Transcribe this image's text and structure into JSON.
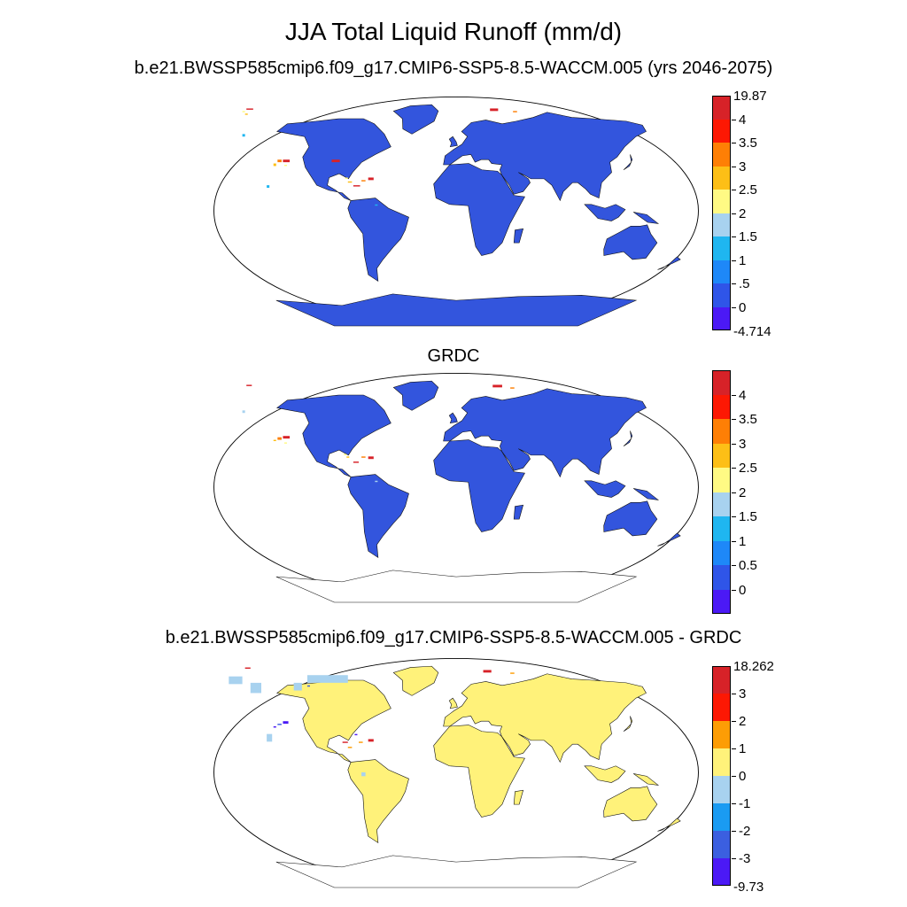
{
  "title": "JJA Total Liquid Runoff (mm/d)",
  "panels": [
    {
      "id": "p1",
      "title": "b.e21.BWSSP585cmip6.f09_g17.CMIP6-SSP5-8.5-WACCM.005 (yrs 2046-2075)",
      "legend": {
        "colors": [
          "#4b19f5",
          "#2f55e8",
          "#1e88f8",
          "#1fb6f0",
          "#a8d2ef",
          "#fffa84",
          "#fdbf16",
          "#fe7f05",
          "#fd1803",
          "#d72228"
        ],
        "labels": [
          "-4.714",
          "0",
          ".5",
          "1",
          "1.5",
          "2",
          "2.5",
          "3",
          "3.5",
          "4",
          "19.87"
        ],
        "end_labels": true
      },
      "land": "#3355dd",
      "patches": [
        {
          "color": "#d72228",
          "shapes": [
            [
              205,
              10,
              6,
              2
            ],
            [
              52,
              50,
              5,
              2
            ],
            [
              88,
              50,
              6,
              2
            ],
            [
              25,
              10,
              5,
              1
            ],
            [
              115,
              64,
              4,
              2
            ],
            [
              104,
              70,
              5,
              1
            ]
          ]
        },
        {
          "color": "#fe7f05",
          "shapes": [
            [
              48,
              50,
              3,
              2
            ],
            [
              110,
              66,
              3,
              1
            ],
            [
              222,
              12,
              3,
              1
            ]
          ]
        },
        {
          "color": "#fdbf16",
          "shapes": [
            [
              45,
              53,
              2,
              2
            ],
            [
              100,
              67,
              3,
              1
            ],
            [
              24,
              14,
              2,
              1
            ]
          ]
        },
        {
          "color": "#fffa84",
          "shapes": [
            [
              53,
              54,
              2,
              1
            ],
            [
              98,
              64,
              2,
              1
            ],
            [
              22,
              12,
              2,
              1
            ]
          ]
        },
        {
          "color": "#1fb6f0",
          "shapes": [
            [
              22,
              30,
              2,
              2
            ],
            [
              40,
              70,
              2,
              2
            ],
            [
              120,
              85,
              2,
              1
            ]
          ]
        }
      ]
    },
    {
      "id": "p2",
      "title": "GRDC",
      "legend": {
        "colors": [
          "#4b19f5",
          "#2f55e8",
          "#1e88f8",
          "#1fb6f0",
          "#a8d2ef",
          "#fffa84",
          "#fdbf16",
          "#fe7f05",
          "#fd1803",
          "#d72228"
        ],
        "labels": [
          "0",
          "0.5",
          "1",
          "1.5",
          "2",
          "2.5",
          "3",
          "3.5",
          "4"
        ],
        "end_labels": false
      },
      "land": "#3355dd",
      "patches": [
        {
          "color": "#d72228",
          "shapes": [
            [
              207,
              10,
              7,
              2
            ],
            [
              52,
              50,
              5,
              2
            ],
            [
              115,
              66,
              4,
              2
            ],
            [
              104,
              70,
              4,
              1
            ],
            [
              25,
              10,
              4,
              1
            ]
          ]
        },
        {
          "color": "#fe7f05",
          "shapes": [
            [
              48,
              51,
              3,
              2
            ],
            [
              110,
              66,
              3,
              1
            ],
            [
              220,
              12,
              3,
              1
            ]
          ]
        },
        {
          "color": "#fdbf16",
          "shapes": [
            [
              45,
              53,
              2,
              1
            ],
            [
              99,
              66,
              2,
              1
            ]
          ]
        },
        {
          "color": "#fffa84",
          "shapes": [
            [
              53,
              55,
              2,
              1
            ],
            [
              97,
              64,
              2,
              1
            ]
          ]
        },
        {
          "color": "#a8d2ef",
          "shapes": [
            [
              22,
              30,
              2,
              2
            ],
            [
              120,
              85,
              2,
              1
            ]
          ]
        }
      ]
    },
    {
      "id": "p3",
      "title": "b.e21.BWSSP585cmip6.f09_g17.CMIP6-SSP5-8.5-WACCM.005 - GRDC",
      "legend": {
        "colors": [
          "#4b19f5",
          "#3b5fe0",
          "#1a9bf2",
          "#a8d2ef",
          "#fff27a",
          "#fd9d05",
          "#fd1803",
          "#d72228"
        ],
        "labels": [
          "-9.73",
          "-3",
          "-2",
          "-1",
          "0",
          "1",
          "2",
          "3",
          "18.262"
        ],
        "end_labels": true
      },
      "land": "#fff27a",
      "patches": [
        {
          "color": "#a8d2ef",
          "shapes": [
            [
              12,
              15,
              10,
              6
            ],
            [
              28,
              20,
              8,
              8
            ],
            [
              70,
              14,
              30,
              6
            ],
            [
              40,
              60,
              4,
              6
            ],
            [
              110,
              90,
              3,
              3
            ],
            [
              60,
              20,
              6,
              6
            ]
          ]
        },
        {
          "color": "#d72228",
          "shapes": [
            [
              200,
              10,
              6,
              2
            ],
            [
              115,
              64,
              4,
              2
            ],
            [
              24,
              8,
              4,
              1
            ],
            [
              96,
              66,
              4,
              1
            ]
          ]
        },
        {
          "color": "#fd9d05",
          "shapes": [
            [
              100,
              70,
              3,
              1
            ],
            [
              220,
              12,
              3,
              1
            ],
            [
              108,
              66,
              3,
              1
            ]
          ]
        },
        {
          "color": "#4b19f5",
          "shapes": [
            [
              52,
              50,
              4,
              2
            ],
            [
              45,
              54,
              2,
              1
            ],
            [
              105,
              60,
              2,
              1
            ]
          ]
        },
        {
          "color": "#3b5fe0",
          "shapes": [
            [
              48,
              52,
              3,
              1
            ],
            [
              70,
              22,
              2,
              1
            ]
          ]
        }
      ]
    }
  ]
}
